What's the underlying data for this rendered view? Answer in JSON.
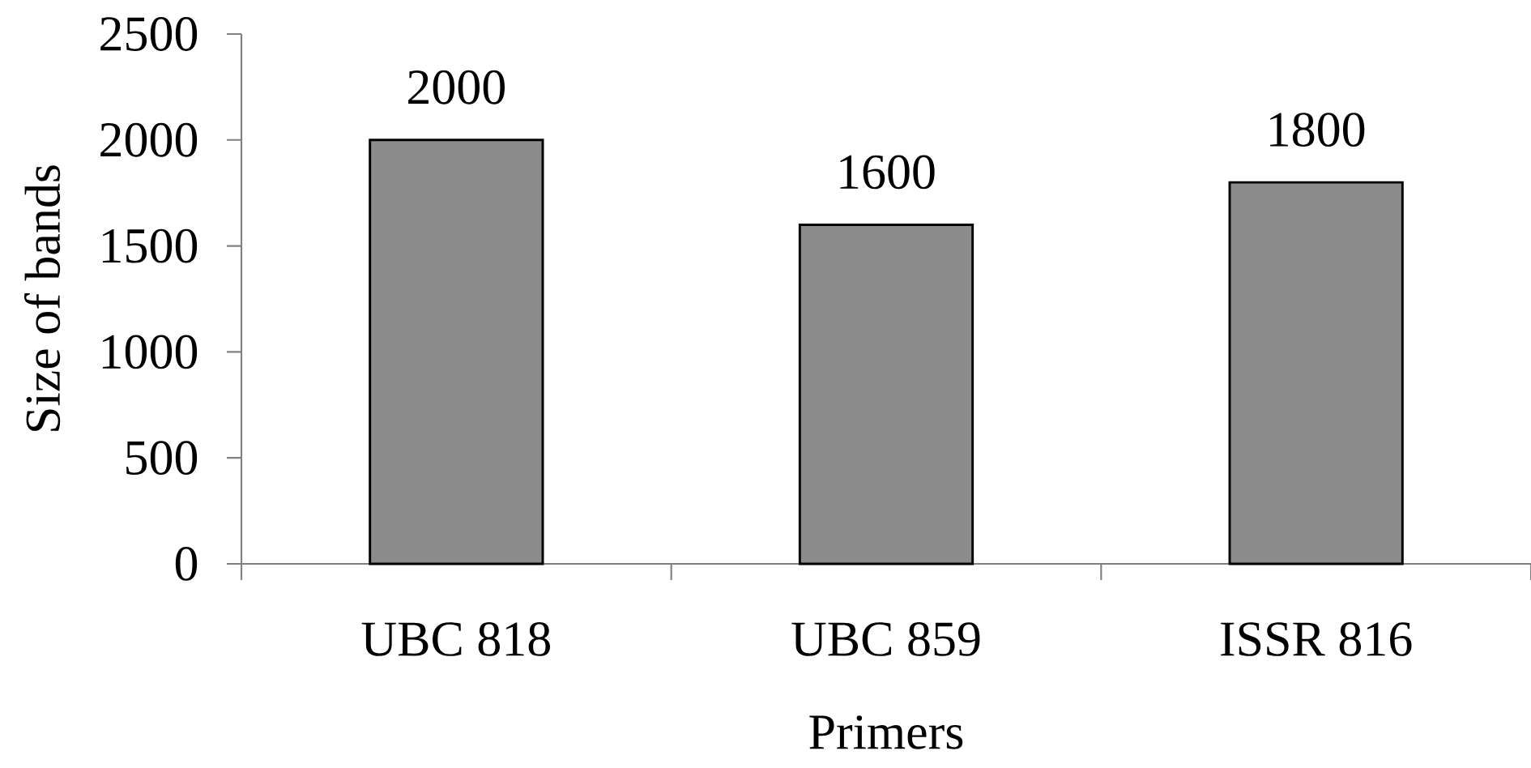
{
  "chart_data": {
    "type": "bar",
    "xlabel": "Primers",
    "ylabel": "Size of bands",
    "categories": [
      "UBC 818",
      "UBC 859",
      "ISSR 816"
    ],
    "values": [
      2000,
      1600,
      1800
    ],
    "color": "#8c8c8c",
    "ylim": [
      0,
      2500
    ],
    "yticks": [
      0,
      500,
      1000,
      1500,
      2000,
      2500
    ],
    "data_labels": true
  }
}
